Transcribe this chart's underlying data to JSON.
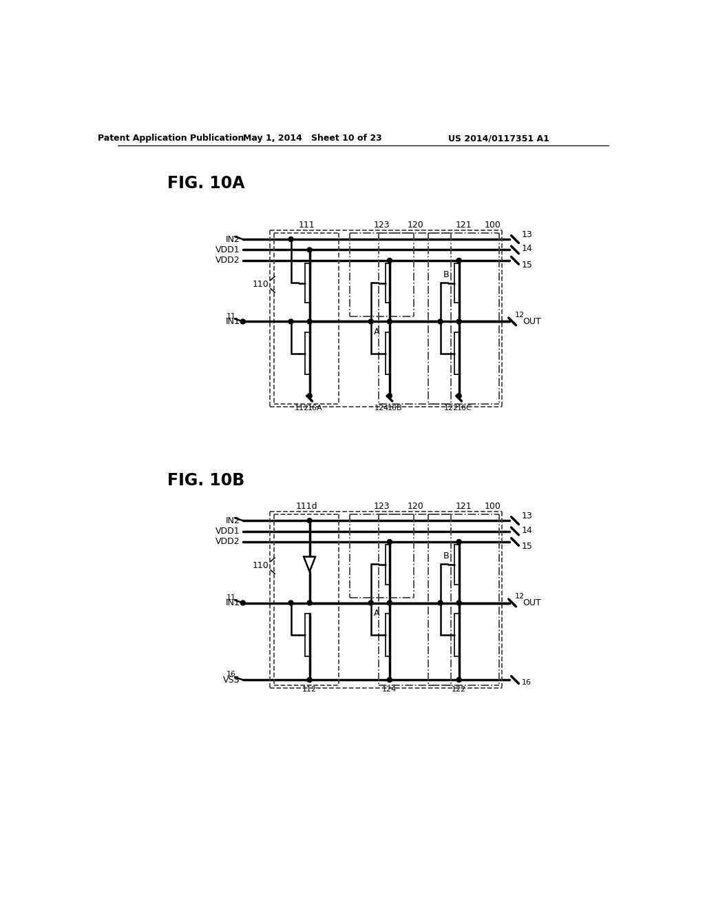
{
  "header_left": "Patent Application Publication",
  "header_middle": "May 1, 2014   Sheet 10 of 23",
  "header_right": "US 2014/0117351 A1",
  "fig10a_label": "FIG. 10A",
  "fig10b_label": "FIG. 10B",
  "bg_color": "#ffffff",
  "line_color": "#000000"
}
